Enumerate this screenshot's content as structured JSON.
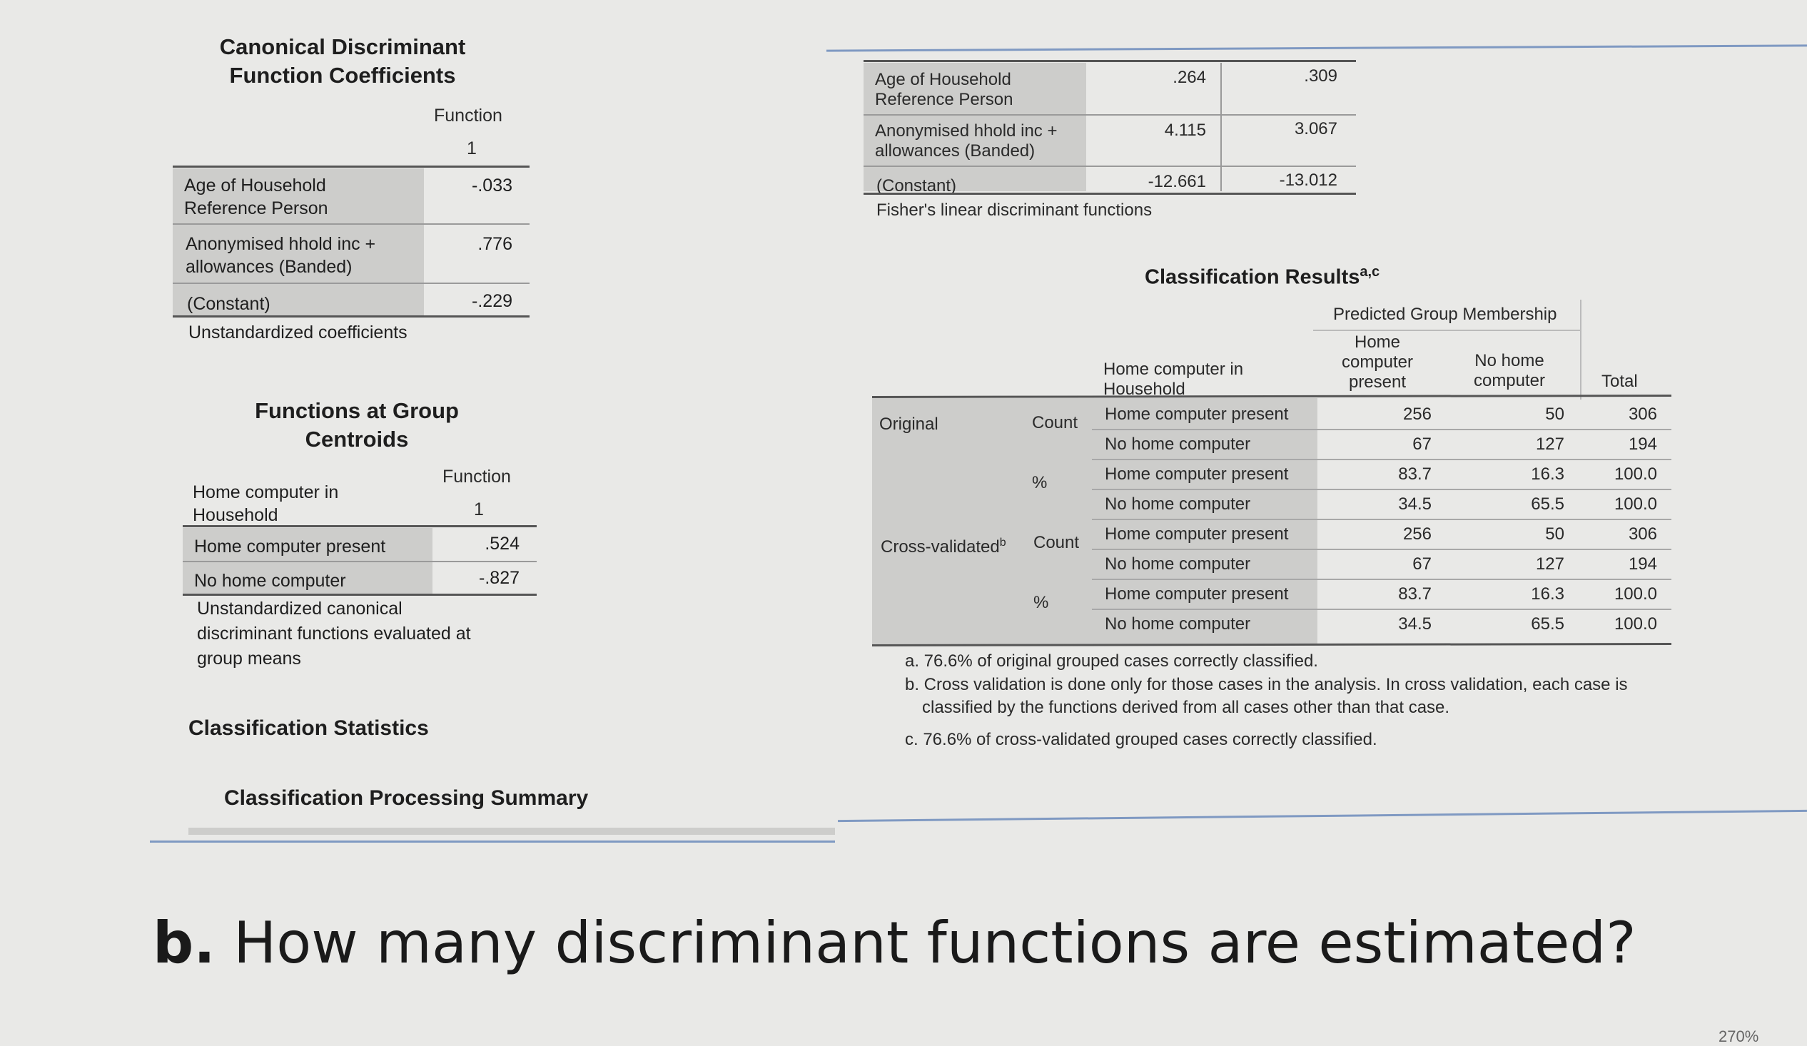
{
  "canonical": {
    "title_line1": "Canonical Discriminant",
    "title_line2": "Function Coefficients",
    "header_function": "Function",
    "header_number": "1",
    "rows": [
      {
        "label_line1": "Age of Household",
        "label_line2": "Reference Person",
        "value": "-.033"
      },
      {
        "label_line1": "Anonymised hhold inc +",
        "label_line2": "allowances (Banded)",
        "value": ".776"
      },
      {
        "label_line1": "(Constant)",
        "label_line2": "",
        "value": "-.229"
      }
    ],
    "footer": "Unstandardized coefficients"
  },
  "fisher": {
    "rows": [
      {
        "label_line1": "Age of Household",
        "label_line2": "Reference Person",
        "v1": ".264",
        "v2": ".309"
      },
      {
        "label_line1": "Anonymised hhold inc +",
        "label_line2": "allowances (Banded)",
        "v1": "4.115",
        "v2": "3.067"
      },
      {
        "label_line1": "(Constant)",
        "label_line2": "",
        "v1": "-12.661",
        "v2": "-13.012"
      }
    ],
    "footer": "Fisher's linear discriminant functions"
  },
  "centroids": {
    "title_line1": "Functions at Group",
    "title_line2": "Centroids",
    "col_label_line1": "Home computer in",
    "col_label_line2": "Household",
    "header_function": "Function",
    "header_number": "1",
    "rows": [
      {
        "label": "Home computer present",
        "value": ".524"
      },
      {
        "label": "No home computer",
        "value": "-.827"
      }
    ],
    "footer_line1": "Unstandardized canonical",
    "footer_line2": "discriminant functions evaluated at",
    "footer_line3": "group means"
  },
  "classification_statistics_title": "Classification Statistics",
  "processing_summary_title": "Classification Processing Summary",
  "results": {
    "title": "Classification Results",
    "title_sup": "a,c",
    "predicted_header": "Predicted Group Membership",
    "row_header_line1": "Home computer in",
    "row_header_line2": "Household",
    "col_present_line1": "Home",
    "col_present_line2": "computer",
    "col_present_line3": "present",
    "col_none_line1": "No home",
    "col_none_line2": "computer",
    "col_total": "Total",
    "original_label": "Original",
    "crossval_label": "Cross-validated",
    "crossval_sup": "b",
    "count_label": "Count",
    "percent_label": "%",
    "rows": [
      {
        "group": "Home computer present",
        "present": "256",
        "none": "50",
        "total": "306"
      },
      {
        "group": "No home computer",
        "present": "67",
        "none": "127",
        "total": "194"
      },
      {
        "group": "Home computer present",
        "present": "83.7",
        "none": "16.3",
        "total": "100.0"
      },
      {
        "group": "No home computer",
        "present": "34.5",
        "none": "65.5",
        "total": "100.0"
      },
      {
        "group": "Home computer present",
        "present": "256",
        "none": "50",
        "total": "306"
      },
      {
        "group": "No home computer",
        "present": "67",
        "none": "127",
        "total": "194"
      },
      {
        "group": "Home computer present",
        "present": "83.7",
        "none": "16.3",
        "total": "100.0"
      },
      {
        "group": "No home computer",
        "present": "34.5",
        "none": "65.5",
        "total": "100.0"
      }
    ],
    "note_a": "a. 76.6% of original grouped cases correctly classified.",
    "note_b_line1": "b. Cross validation is done only for those cases in the analysis. In cross validation, each case is",
    "note_b_line2": "classified by the functions derived from all cases other than that case.",
    "note_c": "c. 76.6% of cross-validated grouped cases correctly classified."
  },
  "question": {
    "label": "b.",
    "text": " How many discriminant functions are estimated?"
  },
  "zoom_label": "270%",
  "colors": {
    "background": "#e9e9e7",
    "label_cell": "#cdcdcb",
    "rule_blue": "#7f99c2"
  }
}
